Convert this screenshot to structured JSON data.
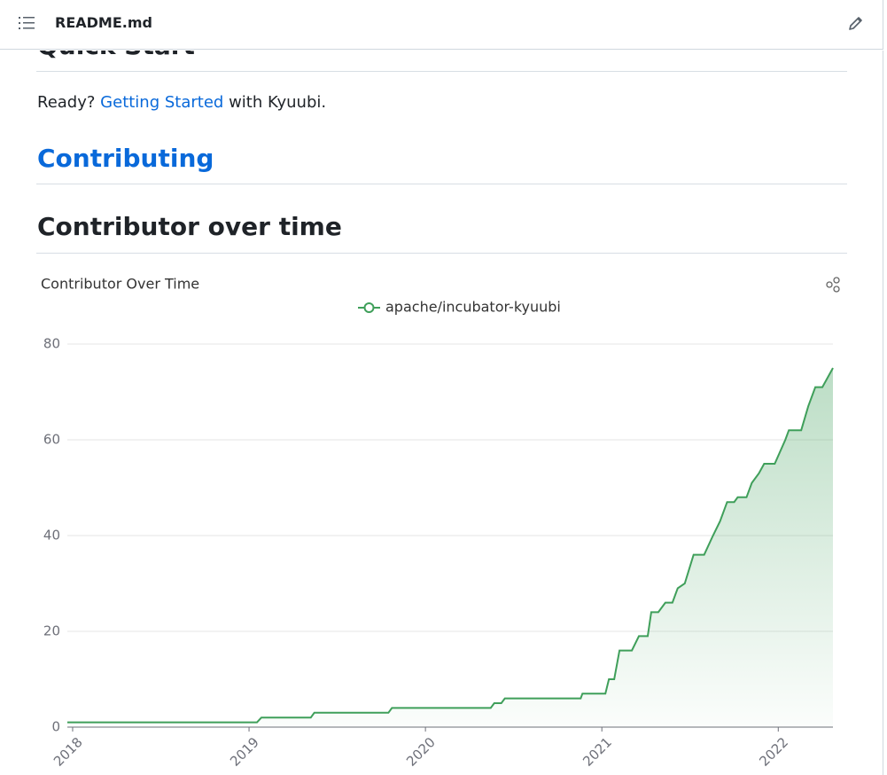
{
  "header": {
    "title": "README.md"
  },
  "content": {
    "quick_start": "Quick Start",
    "ready_prefix": "Ready?",
    "ready_link": "Getting Started",
    "ready_suffix": "with Kyuubi.",
    "contributing": "Contributing",
    "contributor_heading": "Contributor over time"
  },
  "chart_data": {
    "type": "line",
    "title": "Contributor Over Time",
    "x": [
      2017.97,
      2019.045,
      2019.07,
      2019.35,
      2019.37,
      2019.79,
      2019.81,
      2020.37,
      2020.39,
      2020.43,
      2020.45,
      2020.88,
      2020.89,
      2021.02,
      2021.04,
      2021.07,
      2021.1,
      2021.17,
      2021.21,
      2021.26,
      2021.28,
      2021.32,
      2021.36,
      2021.4,
      2021.43,
      2021.47,
      2021.52,
      2021.58,
      2021.63,
      2021.67,
      2021.71,
      2021.75,
      2021.77,
      2021.82,
      2021.85,
      2021.89,
      2021.92,
      2021.98,
      2022.04,
      2022.06,
      2022.13,
      2022.17,
      2022.21,
      2022.25,
      2022.31
    ],
    "series": [
      {
        "name": "apache/incubator-kyuubi",
        "color": "#3f9f5a",
        "values": [
          1,
          1,
          2,
          2,
          3,
          3,
          4,
          4,
          5,
          5,
          6,
          6,
          7,
          7,
          10,
          10,
          16,
          16,
          19,
          19,
          24,
          24,
          26,
          26,
          29,
          30,
          36,
          36,
          40,
          43,
          47,
          47,
          48,
          48,
          51,
          53,
          55,
          55,
          60,
          62,
          62,
          67,
          71,
          71,
          75
        ]
      }
    ],
    "xlim": [
      2017.97,
      2022.31
    ],
    "xticks": [
      2018,
      2019,
      2020,
      2021,
      2022
    ],
    "ylim": [
      0,
      80
    ],
    "yticks": [
      0,
      20,
      40,
      60,
      80
    ],
    "grid": true,
    "area": true
  }
}
